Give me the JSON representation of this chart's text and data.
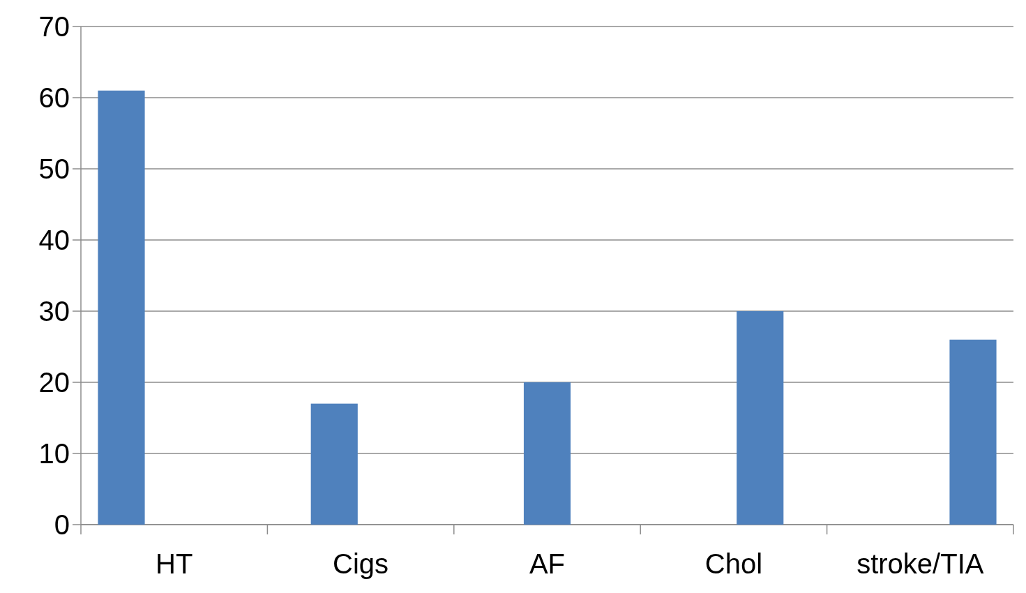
{
  "chart_data": {
    "type": "bar",
    "categories": [
      "HT",
      "Cigs",
      "AF",
      "Chol",
      "stroke/TIA"
    ],
    "values": [
      61,
      17,
      20,
      30,
      26
    ],
    "color": "#4f81bd",
    "ylim": [
      0,
      70
    ],
    "yticks": [
      0,
      10,
      20,
      30,
      40,
      50,
      60,
      70
    ],
    "grid": "y"
  }
}
